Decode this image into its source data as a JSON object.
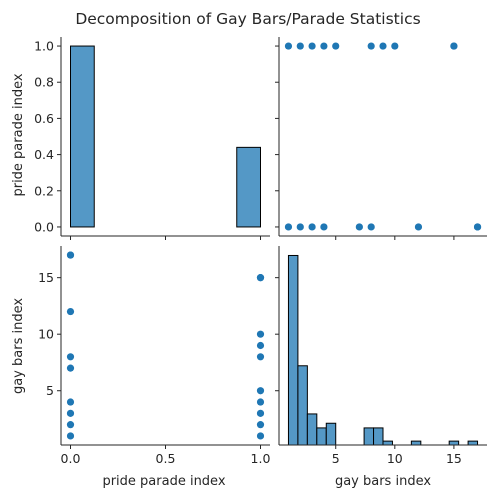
{
  "chart_data": {
    "type": "pairplot",
    "title": "Decomposition of Gay Bars/Parade Statistics",
    "variables": [
      "pride parade index",
      "gay bars index"
    ],
    "colors": {
      "point": "#1f77b4",
      "bar_fill": "#5498c6",
      "bar_edge": "#000000",
      "axis": "#262626"
    },
    "points": {
      "pride": [
        1,
        1,
        1,
        1,
        1,
        1,
        1,
        1,
        1,
        1,
        0,
        0,
        0,
        0,
        0,
        0,
        0,
        0,
        0
      ],
      "bars": [
        1,
        2,
        3,
        4,
        5,
        8,
        9,
        10,
        15,
        15,
        1,
        2,
        3,
        4,
        7,
        8,
        12,
        17,
        17
      ]
    },
    "hist_pride": {
      "bins": [
        [
          0,
          0.125,
          1.0
        ],
        [
          0.875,
          1.0,
          0.44
        ]
      ],
      "ylim": [
        -0.05,
        1.05
      ],
      "yticks": [
        "0.0",
        "0.2",
        "0.4",
        "0.6",
        "0.8",
        "1.0"
      ]
    },
    "hist_bars": {
      "bins": [
        [
          1.0,
          1.8,
          12.2
        ],
        [
          1.8,
          2.6,
          5.1
        ],
        [
          2.6,
          3.4,
          2.0
        ],
        [
          3.4,
          4.2,
          1.1
        ],
        [
          4.2,
          5.0,
          1.4
        ],
        [
          7.4,
          8.2,
          1.1
        ],
        [
          8.2,
          9.0,
          1.1
        ],
        [
          9.0,
          9.8,
          0.25
        ],
        [
          11.4,
          12.2,
          0.25
        ],
        [
          14.6,
          15.4,
          0.25
        ],
        [
          16.2,
          17.0,
          0.25
        ]
      ]
    },
    "pride_axis": {
      "label": "pride parade index",
      "lim": [
        -0.05,
        1.05
      ],
      "ticks": [
        0,
        0.5,
        1.0
      ],
      "tick_labels": [
        "0.0",
        "0.5",
        "1.0"
      ]
    },
    "bars_axis": {
      "label": "gay bars index",
      "lim": [
        0.2,
        17.8
      ],
      "ticks": [
        5,
        10,
        15
      ],
      "tick_labels": [
        "5",
        "10",
        "15"
      ]
    }
  }
}
